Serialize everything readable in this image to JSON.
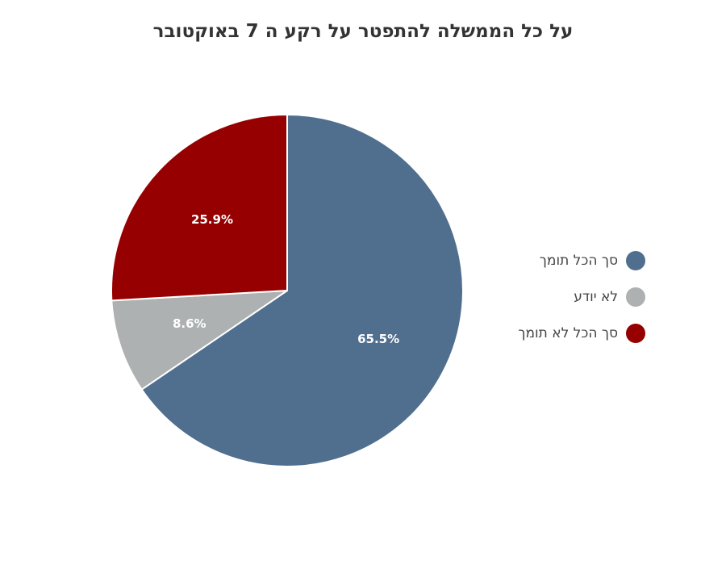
{
  "chart_data": {
    "type": "pie",
    "title": "על כל הממשלה להתפטר על רקע ה 7 באוקטובר",
    "slices": [
      {
        "label": "סך הכל תומך",
        "value": 65.5,
        "value_label": "65.5%",
        "color": "#506e8e"
      },
      {
        "label": "לא יודע",
        "value": 8.6,
        "value_label": "8.6%",
        "color": "#adb1b1"
      },
      {
        "label": "סך הכל לא תומך",
        "value": 25.9,
        "value_label": "25.9%",
        "color": "#960000"
      }
    ],
    "legend_position": "right",
    "start_angle": "top",
    "direction": "clockwise"
  }
}
